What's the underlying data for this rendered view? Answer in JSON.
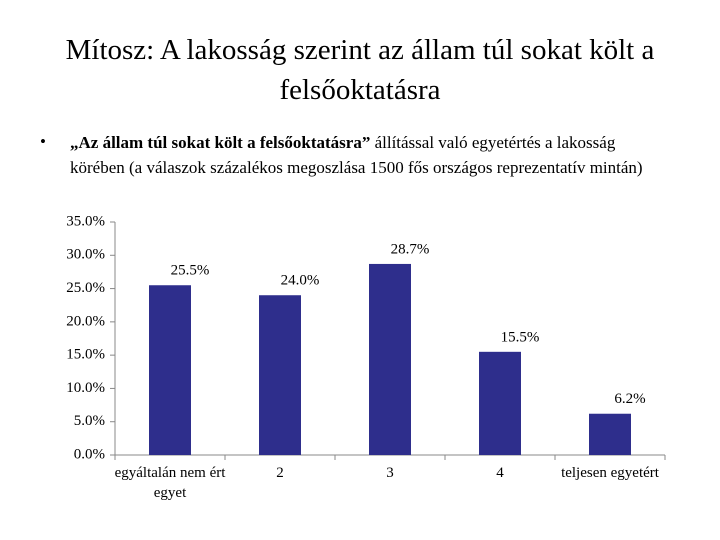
{
  "slide_title": "Mítosz: A lakosság szerint az állam túl sokat költ a felsőoktatásra",
  "bullet": {
    "bold": "„Az állam túl sokat költ a felsőoktatásra”",
    "text": "állítással való egyetértés a lakosság körében (a válaszok százalékos megoszlása 1500 fős országos reprezentatív mintán)"
  },
  "chart_data": {
    "type": "bar",
    "categories": [
      "egyáltalán nem ért egyet",
      "2",
      "3",
      "4",
      "teljesen egyetért"
    ],
    "values": [
      25.5,
      24.0,
      28.7,
      15.5,
      6.2
    ],
    "value_labels": [
      "25.5%",
      "24.0%",
      "28.7%",
      "15.5%",
      "6.2%"
    ],
    "color": "#2e2e8c",
    "ylim": [
      0,
      35
    ],
    "yticks": [
      {
        "value": 0,
        "label": "0.0%"
      },
      {
        "value": 5,
        "label": "5.0%"
      },
      {
        "value": 10,
        "label": "10.0%"
      },
      {
        "value": 15,
        "label": "15.0%"
      },
      {
        "value": 20,
        "label": "20.0%"
      },
      {
        "value": 25,
        "label": "25.0%"
      },
      {
        "value": 30,
        "label": "30.0%"
      },
      {
        "value": 35,
        "label": "35.0%"
      }
    ],
    "grid": false
  }
}
